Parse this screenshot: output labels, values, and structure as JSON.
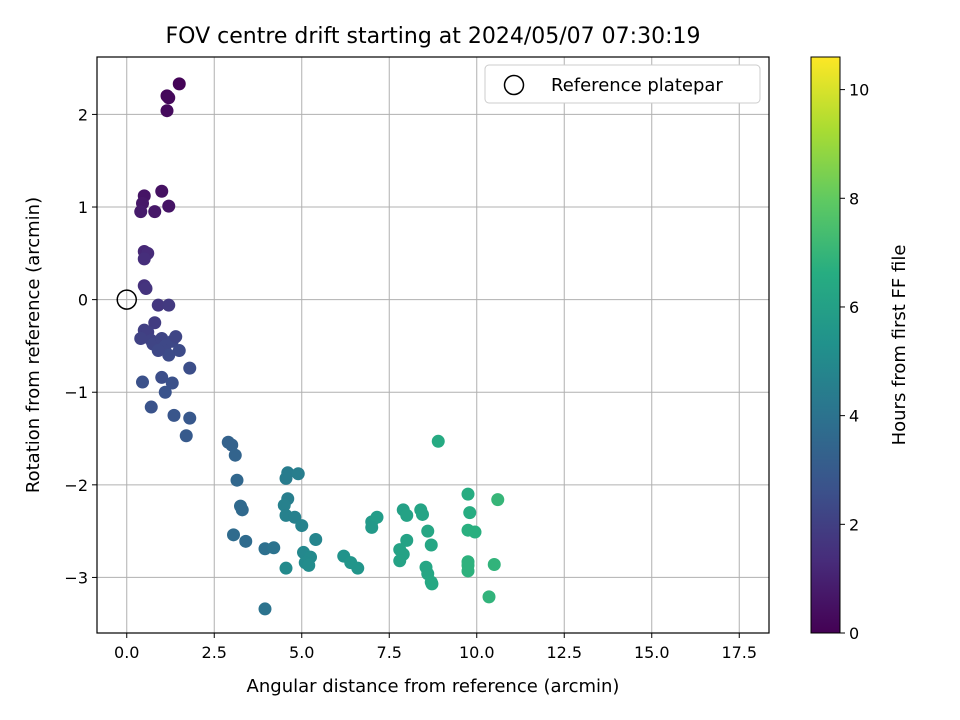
{
  "chart_data": {
    "type": "scatter",
    "title": "FOV centre drift starting at 2024/05/07 07:30:19",
    "xlabel": "Angular distance from reference (arcmin)",
    "ylabel": "Rotation from reference (arcmin)",
    "xlim": [
      -0.85,
      18.35
    ],
    "ylim": [
      -3.6,
      2.62
    ],
    "xticks": [
      0.0,
      2.5,
      5.0,
      7.5,
      10.0,
      12.5,
      15.0,
      17.5
    ],
    "xtick_labels": [
      "0.0",
      "2.5",
      "5.0",
      "7.5",
      "10.0",
      "12.5",
      "15.0",
      "17.5"
    ],
    "yticks": [
      2,
      1,
      0,
      -1,
      -2,
      -3
    ],
    "ytick_labels": [
      "2",
      "1",
      "0",
      "−1",
      "−2",
      "−3"
    ],
    "grid": true,
    "legend": {
      "placement": "top-right",
      "entries": [
        "Reference platepar"
      ]
    },
    "reference_point": {
      "name": "Reference platepar",
      "x": 0.0,
      "y": 0.0,
      "marker": "open-circle"
    },
    "colorbar": {
      "label": "Hours from first FF file",
      "colormap": "viridis",
      "range": [
        0,
        10.6
      ],
      "ticks": [
        0,
        2,
        4,
        6,
        8,
        10
      ],
      "tick_labels": [
        "0",
        "2",
        "4",
        "6",
        "8",
        "10"
      ]
    },
    "series": [
      {
        "columns": [
          "x",
          "y",
          "hours"
        ],
        "points": [
          [
            1.5,
            2.33,
            0.1
          ],
          [
            1.15,
            2.2,
            0.2
          ],
          [
            1.2,
            2.18,
            0.25
          ],
          [
            1.15,
            2.04,
            0.3
          ],
          [
            0.5,
            1.12,
            0.6
          ],
          [
            0.45,
            1.04,
            0.7
          ],
          [
            1.0,
            1.17,
            0.5
          ],
          [
            1.2,
            1.01,
            0.6
          ],
          [
            0.4,
            0.95,
            0.8
          ],
          [
            0.8,
            0.95,
            0.7
          ],
          [
            0.5,
            0.52,
            1.2
          ],
          [
            0.6,
            0.5,
            1.3
          ],
          [
            0.5,
            0.44,
            1.4
          ],
          [
            0.5,
            0.15,
            1.5
          ],
          [
            0.55,
            0.12,
            1.6
          ],
          [
            0.9,
            -0.06,
            1.7
          ],
          [
            1.2,
            -0.06,
            1.8
          ],
          [
            0.8,
            -0.25,
            1.9
          ],
          [
            0.5,
            -0.33,
            2.0
          ],
          [
            0.6,
            -0.35,
            2.0
          ],
          [
            0.4,
            -0.42,
            2.1
          ],
          [
            0.7,
            -0.44,
            2.1
          ],
          [
            0.75,
            -0.48,
            2.2
          ],
          [
            1.0,
            -0.42,
            2.2
          ],
          [
            1.1,
            -0.5,
            2.3
          ],
          [
            1.3,
            -0.45,
            2.3
          ],
          [
            1.4,
            -0.4,
            2.2
          ],
          [
            1.5,
            -0.55,
            2.4
          ],
          [
            1.2,
            -0.6,
            2.4
          ],
          [
            0.9,
            -0.55,
            2.3
          ],
          [
            1.8,
            -0.74,
            2.5
          ],
          [
            1.0,
            -0.84,
            2.5
          ],
          [
            1.3,
            -0.9,
            2.6
          ],
          [
            0.45,
            -0.89,
            2.6
          ],
          [
            1.1,
            -1.0,
            2.7
          ],
          [
            0.7,
            -1.16,
            2.7
          ],
          [
            1.35,
            -1.25,
            2.8
          ],
          [
            1.8,
            -1.28,
            2.9
          ],
          [
            1.7,
            -1.47,
            3.0
          ],
          [
            2.9,
            -1.54,
            3.3
          ],
          [
            3.0,
            -1.57,
            3.3
          ],
          [
            3.1,
            -1.68,
            3.4
          ],
          [
            3.15,
            -1.95,
            3.5
          ],
          [
            3.25,
            -2.23,
            3.6
          ],
          [
            3.3,
            -2.27,
            3.6
          ],
          [
            3.05,
            -2.54,
            3.7
          ],
          [
            3.4,
            -2.61,
            3.7
          ],
          [
            3.95,
            -2.69,
            3.9
          ],
          [
            4.2,
            -2.68,
            4.0
          ],
          [
            3.95,
            -3.34,
            4.0
          ],
          [
            4.6,
            -1.87,
            4.4
          ],
          [
            4.55,
            -1.93,
            4.4
          ],
          [
            4.9,
            -1.88,
            4.5
          ],
          [
            4.6,
            -2.15,
            4.5
          ],
          [
            4.5,
            -2.22,
            4.6
          ],
          [
            4.55,
            -2.33,
            4.6
          ],
          [
            4.8,
            -2.35,
            4.6
          ],
          [
            5.0,
            -2.44,
            4.7
          ],
          [
            5.4,
            -2.59,
            4.8
          ],
          [
            5.05,
            -2.73,
            4.9
          ],
          [
            5.25,
            -2.78,
            5.0
          ],
          [
            5.1,
            -2.84,
            5.0
          ],
          [
            5.2,
            -2.87,
            5.1
          ],
          [
            4.55,
            -2.9,
            5.0
          ],
          [
            6.2,
            -2.77,
            5.4
          ],
          [
            6.4,
            -2.84,
            5.5
          ],
          [
            6.6,
            -2.9,
            5.5
          ],
          [
            7.0,
            -2.4,
            5.7
          ],
          [
            7.15,
            -2.35,
            5.8
          ],
          [
            7.0,
            -2.46,
            5.7
          ],
          [
            7.9,
            -2.27,
            6.0
          ],
          [
            8.0,
            -2.33,
            6.1
          ],
          [
            8.4,
            -2.27,
            6.2
          ],
          [
            8.45,
            -2.32,
            6.2
          ],
          [
            8.0,
            -2.6,
            6.1
          ],
          [
            7.8,
            -2.7,
            6.1
          ],
          [
            8.6,
            -2.5,
            6.3
          ],
          [
            8.7,
            -2.65,
            6.3
          ],
          [
            7.9,
            -2.75,
            6.1
          ],
          [
            7.8,
            -2.82,
            6.1
          ],
          [
            8.55,
            -2.89,
            6.3
          ],
          [
            8.6,
            -2.96,
            6.3
          ],
          [
            8.7,
            -3.05,
            6.4
          ],
          [
            8.72,
            -3.07,
            6.4
          ],
          [
            8.9,
            -1.53,
            6.5
          ],
          [
            9.75,
            -2.1,
            6.6
          ],
          [
            9.8,
            -2.3,
            6.6
          ],
          [
            9.75,
            -2.49,
            6.7
          ],
          [
            9.95,
            -2.51,
            6.7
          ],
          [
            9.75,
            -2.83,
            6.8
          ],
          [
            9.75,
            -2.87,
            6.8
          ],
          [
            9.75,
            -2.93,
            6.8
          ],
          [
            10.5,
            -2.86,
            6.9
          ],
          [
            10.35,
            -3.21,
            6.9
          ],
          [
            10.6,
            -2.16,
            7.0
          ]
        ]
      }
    ]
  }
}
